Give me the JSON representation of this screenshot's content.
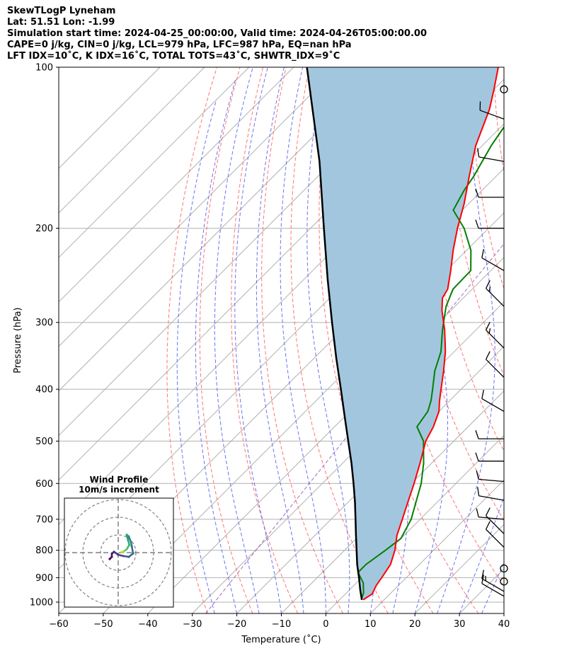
{
  "title": {
    "line1": "SkewTLogP Lyneham",
    "line2": "Lat: 51.51   Lon: -1.99",
    "line3": "Simulation start time: 2024-04-25_00:00:00, Valid time: 2024-04-26T05:00:00.00",
    "line4": "CAPE=0 j/kg, CIN=0 j/kg, LCL=979 hPa, LFC=987 hPa, EQ=nan hPa",
    "line5": "LFT IDX=10˚C, K IDX=16˚C, TOTAL TOTS=43˚C, SHWTR_IDX=9˚C"
  },
  "chart_data": [
    {
      "type": "line",
      "xlabel": "Temperature (˚C)",
      "ylabel": "Pressure (hPa)",
      "xlim": [
        -60,
        40
      ],
      "ylim": [
        1050,
        100
      ],
      "y_scale": "log",
      "skew_deg": 45,
      "x_ticks": [
        -60,
        -50,
        -40,
        -30,
        -20,
        -10,
        0,
        10,
        20,
        30,
        40
      ],
      "x_tick_labels": [
        "−60",
        "−50",
        "−40",
        "−30",
        "−20",
        "−10",
        "0",
        "10",
        "20",
        "30",
        "40"
      ],
      "y_ticks": [
        1000,
        900,
        800,
        700,
        600,
        500,
        400,
        300,
        200,
        100
      ],
      "y_tick_labels": [
        "1000",
        "900",
        "800",
        "700",
        "600",
        "500",
        "400",
        "300",
        "200",
        "100"
      ],
      "grid": true,
      "colors": {
        "temperature": "#ff0000",
        "dewpoint": "#008000",
        "parcel": "#000000",
        "fill": "#a3c6df",
        "dry_adiabat": "#ff6666",
        "moist_adiabat": "#5a66f0",
        "mixing_ratio": "#9b59b6",
        "isotherm": "#b0b0b0"
      },
      "series": [
        {
          "key": "temperature",
          "p": [
            990,
            965,
            930,
            900,
            850,
            800,
            750,
            700,
            650,
            600,
            550,
            500,
            470,
            440,
            420,
            400,
            370,
            340,
            310,
            285,
            270,
            260,
            240,
            220,
            200,
            180,
            160,
            140,
            120,
            110,
            100
          ],
          "t": [
            5.3,
            6.0,
            5.0,
            4.5,
            3.5,
            1.3,
            -1.6,
            -4.0,
            -6.6,
            -9.4,
            -12.6,
            -16.3,
            -17.8,
            -20.0,
            -22.3,
            -24.5,
            -28.0,
            -32.0,
            -37.0,
            -42.0,
            -44.7,
            -45.5,
            -49.0,
            -53.0,
            -57.0,
            -61.0,
            -66.0,
            -71.5,
            -76.5,
            -80.0,
            -84.0
          ]
        },
        {
          "key": "dewpoint",
          "p": [
            990,
            960,
            920,
            880,
            850,
            800,
            760,
            700,
            650,
            600,
            550,
            500,
            470,
            440,
            420,
            400,
            370,
            340,
            310,
            280,
            260,
            240,
            220,
            200,
            185,
            170,
            160,
            140,
            120,
            100
          ],
          "t": [
            4.9,
            3.8,
            1.5,
            -2.0,
            -2.0,
            -0.8,
            0.0,
            -2.0,
            -4.8,
            -7.8,
            -11.8,
            -16.8,
            -21.5,
            -22.5,
            -24.2,
            -26.4,
            -30.0,
            -33.0,
            -37.5,
            -42.0,
            -44.3,
            -44.5,
            -49.0,
            -55.5,
            -62.0,
            -64.0,
            -65.0,
            -68.0,
            -70.5,
            -73.0
          ]
        },
        {
          "key": "parcel",
          "p": [
            990,
            950,
            900,
            850,
            800,
            750,
            700,
            650,
            600,
            550,
            500,
            450,
            400,
            350,
            300,
            250,
            200,
            150,
            100
          ],
          "t": [
            5.0,
            2.5,
            -0.6,
            -4.0,
            -7.3,
            -10.8,
            -14.5,
            -18.5,
            -23.0,
            -28.0,
            -33.7,
            -40.0,
            -47.0,
            -55.0,
            -64.0,
            -74.5,
            -87.0,
            -103.0,
            -127.0
          ]
        }
      ],
      "wind_barbs": [
        {
          "p": 975,
          "speed_kt": 10,
          "dir_deg": 300
        },
        {
          "p": 955,
          "speed_kt": 15,
          "dir_deg": 300
        },
        {
          "p": 915,
          "speed_kt": 0,
          "dir_deg": 0
        },
        {
          "p": 865,
          "speed_kt": 0,
          "dir_deg": 0
        },
        {
          "p": 790,
          "speed_kt": 10,
          "dir_deg": 315
        },
        {
          "p": 745,
          "speed_kt": 10,
          "dir_deg": 315
        },
        {
          "p": 700,
          "speed_kt": 10,
          "dir_deg": 275
        },
        {
          "p": 645,
          "speed_kt": 10,
          "dir_deg": 280
        },
        {
          "p": 595,
          "speed_kt": 10,
          "dir_deg": 275
        },
        {
          "p": 545,
          "speed_kt": 10,
          "dir_deg": 270
        },
        {
          "p": 495,
          "speed_kt": 10,
          "dir_deg": 270
        },
        {
          "p": 440,
          "speed_kt": 10,
          "dir_deg": 300
        },
        {
          "p": 380,
          "speed_kt": 10,
          "dir_deg": 315
        },
        {
          "p": 335,
          "speed_kt": 15,
          "dir_deg": 315
        },
        {
          "p": 280,
          "speed_kt": 15,
          "dir_deg": 315
        },
        {
          "p": 240,
          "speed_kt": 10,
          "dir_deg": 300
        },
        {
          "p": 200,
          "speed_kt": 10,
          "dir_deg": 270
        },
        {
          "p": 175,
          "speed_kt": 10,
          "dir_deg": 270
        },
        {
          "p": 150,
          "speed_kt": 10,
          "dir_deg": 280
        },
        {
          "p": 125,
          "speed_kt": 10,
          "dir_deg": 290
        },
        {
          "p": 110,
          "speed_kt": 0,
          "dir_deg": 0
        }
      ]
    },
    {
      "type": "scatter",
      "title": "Wind Profile",
      "subtitle": "10m/s increment",
      "points": [
        {
          "u": -2.0,
          "v": -1.5,
          "c": 0.0
        },
        {
          "u": -1.5,
          "v": -1.0,
          "c": 0.05
        },
        {
          "u": -1.5,
          "v": -0.3,
          "c": 0.1
        },
        {
          "u": -1.0,
          "v": 0.2,
          "c": 0.15
        },
        {
          "u": 0.0,
          "v": -0.5,
          "c": 0.2
        },
        {
          "u": 1.2,
          "v": -0.8,
          "c": 0.25
        },
        {
          "u": 2.5,
          "v": -1.0,
          "c": 0.3
        },
        {
          "u": 3.5,
          "v": -0.2,
          "c": 0.35
        },
        {
          "u": 3.2,
          "v": 1.5,
          "c": 0.4
        },
        {
          "u": 3.0,
          "v": 2.5,
          "c": 0.45
        },
        {
          "u": 2.5,
          "v": 3.8,
          "c": 0.5
        },
        {
          "u": 2.0,
          "v": 4.2,
          "c": 0.55
        },
        {
          "u": 2.3,
          "v": 3.0,
          "c": 0.6
        },
        {
          "u": 2.6,
          "v": 1.8,
          "c": 0.65
        },
        {
          "u": 2.0,
          "v": 0.8,
          "c": 0.75
        },
        {
          "u": 1.2,
          "v": 0.2,
          "c": 0.85
        },
        {
          "u": 0.8,
          "v": 0.2,
          "c": 0.95
        }
      ]
    }
  ]
}
